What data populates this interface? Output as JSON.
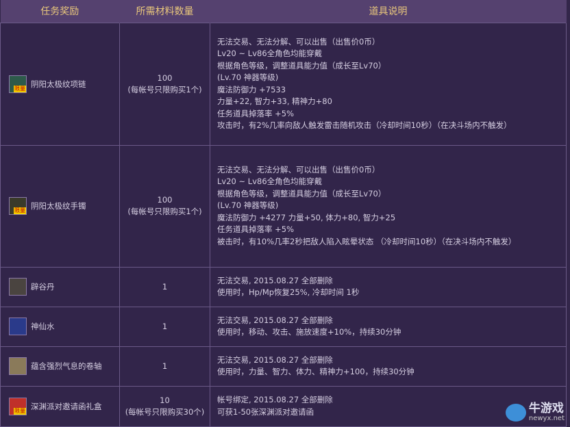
{
  "headers": [
    "任务奖励",
    "所需材料数量",
    "道具说明"
  ],
  "rows": [
    {
      "name": "阴阳太极纹项链",
      "icon": "necklace-icon",
      "limited": "限量",
      "qty": "100",
      "qty_note": "(每帐号只限购买1个)",
      "desc": [
        "无法交易、无法分解、可以出售（出售价0币）",
        "Lv20 ~ Lv86全角色均能穿戴",
        "根据角色等级，调整道具能力值（成长至Lv70）",
        "(Lv.70 神器等级)",
        "魔法防御力 +7533",
        "力量+22, 智力+33, 精神力+80",
        "任务道具掉落率 +5%",
        "攻击时，有2%几率向敌人触发雷击随机攻击（冷却时间10秒）（在决斗场内不触发）"
      ]
    },
    {
      "name": "阴阳太极纹手镯",
      "icon": "bracelet-icon",
      "limited": "限量",
      "qty": "100",
      "qty_note": "(每帐号只限购买1个)",
      "desc": [
        "无法交易、无法分解、可以出售（出售价0币）",
        "Lv20 ~ Lv86全角色均能穿戴",
        "根据角色等级，调整道具能力值（成长至Lv70）",
        "(Lv.70 神器等级)",
        "魔法防御力 +4277 力量+50, 体力+80, 智力+25",
        "任务道具掉落率 +5%",
        "被击时，有10%几率2秒把敌人陷入眩晕状态 （冷却时间10秒）（在决斗场内不触发）"
      ]
    },
    {
      "name": "辟谷丹",
      "icon": "pill-icon",
      "qty": "1",
      "desc": [
        "无法交易, 2015.08.27 全部删除",
        "使用时，Hp/Mp恢复25%, 冷却时间 1秒"
      ]
    },
    {
      "name": "神仙水",
      "icon": "potion-icon",
      "qty": "1",
      "desc": [
        "无法交易, 2015.08.27 全部删除",
        "使用时，移动、攻击、施放速度+10%，持续30分钟"
      ]
    },
    {
      "name": "蕴含强烈气息的卷轴",
      "icon": "scroll-icon",
      "qty": "1",
      "desc": [
        "无法交易, 2015.08.27 全部删除",
        "使用时，力量、智力、体力、精神力+100，持续30分钟"
      ]
    },
    {
      "name": "深渊派对邀请函礼盒",
      "icon": "giftbox-icon",
      "limited": "限量",
      "qty": "10",
      "qty_note": "(每帐号只限购买30个)",
      "desc": [
        "帐号绑定, 2015.08.27 全部删除",
        "可获1-50张深渊派对邀请函"
      ]
    }
  ],
  "watermark": {
    "title": "牛游戏",
    "url": "newyx.net"
  }
}
